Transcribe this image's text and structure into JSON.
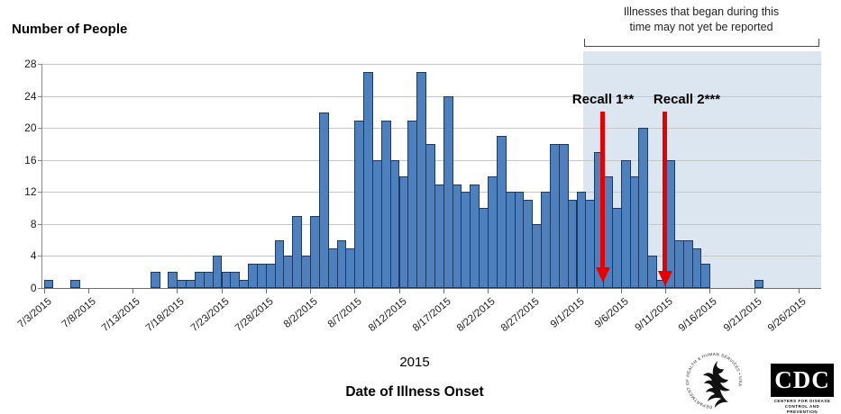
{
  "title": "Number of People",
  "chart_data": {
    "type": "bar",
    "title": "Number of People",
    "xlabel_year": "2015",
    "xlabel": "Date of Illness Onset",
    "ylim": [
      0,
      28
    ],
    "y_ticks": [
      0,
      4,
      8,
      12,
      16,
      20,
      24,
      28
    ],
    "x_tick_labels": [
      "7/3/2015",
      "7/8/2015",
      "7/13/2015",
      "7/18/2015",
      "7/23/2015",
      "7/28/2015",
      "8/2/2015",
      "8/7/2015",
      "8/12/2015",
      "8/17/2015",
      "8/22/2015",
      "8/27/2015",
      "9/1/2015",
      "9/6/2015",
      "9/11/2015",
      "9/16/2015",
      "9/21/2015",
      "9/26/2015"
    ],
    "grid": true,
    "dates": [
      "7/3",
      "7/4",
      "7/5",
      "7/6",
      "7/7",
      "7/8",
      "7/9",
      "7/10",
      "7/11",
      "7/12",
      "7/13",
      "7/14",
      "7/15",
      "7/16",
      "7/17",
      "7/18",
      "7/19",
      "7/20",
      "7/21",
      "7/22",
      "7/23",
      "7/24",
      "7/25",
      "7/26",
      "7/27",
      "7/28",
      "7/29",
      "7/30",
      "7/31",
      "8/1",
      "8/2",
      "8/3",
      "8/4",
      "8/5",
      "8/6",
      "8/7",
      "8/8",
      "8/9",
      "8/10",
      "8/11",
      "8/12",
      "8/13",
      "8/14",
      "8/15",
      "8/16",
      "8/17",
      "8/18",
      "8/19",
      "8/20",
      "8/21",
      "8/22",
      "8/23",
      "8/24",
      "8/25",
      "8/26",
      "8/27",
      "8/28",
      "8/29",
      "8/30",
      "8/31",
      "9/1",
      "9/2",
      "9/3",
      "9/4",
      "9/5",
      "9/6",
      "9/7",
      "9/8",
      "9/9",
      "9/10",
      "9/11",
      "9/12",
      "9/13",
      "9/14",
      "9/15",
      "9/16",
      "9/17",
      "9/18",
      "9/19",
      "9/20",
      "9/21",
      "9/22",
      "9/23",
      "9/24",
      "9/25",
      "9/26"
    ],
    "values": [
      1,
      0,
      0,
      1,
      0,
      0,
      0,
      0,
      0,
      0,
      0,
      0,
      2,
      0,
      2,
      1,
      1,
      2,
      2,
      4,
      2,
      2,
      1,
      3,
      3,
      3,
      6,
      4,
      9,
      4,
      9,
      22,
      5,
      6,
      5,
      21,
      27,
      16,
      21,
      16,
      14,
      21,
      27,
      18,
      13,
      24,
      13,
      12,
      13,
      10,
      14,
      19,
      12,
      12,
      11,
      8,
      12,
      18,
      18,
      11,
      12,
      11,
      17,
      14,
      10,
      16,
      14,
      20,
      4,
      1,
      16,
      6,
      6,
      5,
      3,
      0,
      0,
      0,
      0,
      0,
      1,
      0,
      0,
      0,
      0,
      0
    ]
  },
  "annotations": {
    "not_reported_line1": "Illnesses that began during this",
    "not_reported_line2": "time may not yet be reported",
    "recall1": "Recall 1**",
    "recall2": "Recall 2***"
  },
  "colors": {
    "bar_fill": "#4d80bd",
    "bar_border": "#1a3a63",
    "shade": "#dce6f1",
    "arrow": "#e60000",
    "gridline": "#c6c6c6"
  },
  "logos": {
    "hhs_circle_text": "DEPARTMENT OF HEALTH & HUMAN SERVICES • USA",
    "cdc_acronym": "CDC",
    "cdc_caption_line1": "CENTERS FOR DISEASE",
    "cdc_caption_line2": "CONTROL AND PREVENTION"
  }
}
